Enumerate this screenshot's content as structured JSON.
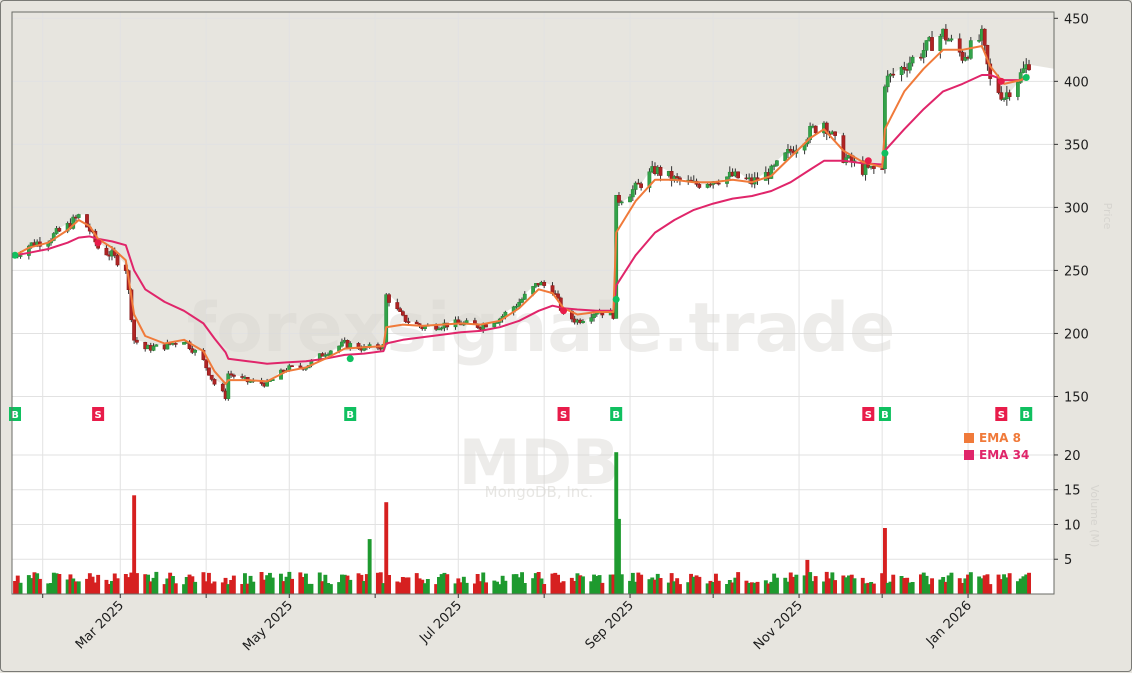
{
  "window": {
    "watermark_site": "forexsignale.trade",
    "watermark_ticker": "MDB",
    "watermark_company": "MongoDB, Inc."
  },
  "colors": {
    "background": "#e7e5df",
    "plot_bg": "#ffffff",
    "up": "#1e9a2f",
    "down": "#d62020",
    "ema8": "#f07a3a",
    "ema34": "#e0256a",
    "buy": "#10c060",
    "sell": "#e81c4a",
    "grid": "#e2e2e2"
  },
  "legend": {
    "items": [
      {
        "label": "EMA 8",
        "color": "#f07a3a"
      },
      {
        "label": "EMA 34",
        "color": "#e0256a"
      }
    ]
  },
  "axes": {
    "price_label": "Price",
    "volume_label": "Volume (M)"
  },
  "chart_data": {
    "type": "candlestick",
    "title": "MDB - MongoDB, Inc.",
    "xlabel": "",
    "ylabel": "Price",
    "price_ylim": [
      125,
      455
    ],
    "price_yticks": [
      150,
      200,
      250,
      300,
      350,
      400,
      450
    ],
    "volume_ylim": [
      0,
      21
    ],
    "volume_yticks": [
      5,
      10,
      15,
      20
    ],
    "x_tick_labels": [
      "Mar 2025",
      "May 2025",
      "Jul 2025",
      "Sep 2025",
      "Nov 2025",
      "Jan 2026"
    ],
    "x_range": [
      "2025-01-22",
      "2026-01-23"
    ],
    "grid": true,
    "legend_position": "lower right of price panel",
    "series": [
      {
        "name": "EMA 8",
        "type": "line"
      },
      {
        "name": "EMA 34",
        "type": "line"
      }
    ],
    "close_approx": [
      {
        "date": "2025-01-22",
        "close": 262
      },
      {
        "date": "2025-01-27",
        "close": 270
      },
      {
        "date": "2025-02-03",
        "close": 275
      },
      {
        "date": "2025-02-10",
        "close": 285
      },
      {
        "date": "2025-02-14",
        "close": 293
      },
      {
        "date": "2025-02-18",
        "close": 282
      },
      {
        "date": "2025-02-21",
        "close": 268
      },
      {
        "date": "2025-02-26",
        "close": 262
      },
      {
        "date": "2025-03-03",
        "close": 252
      },
      {
        "date": "2025-03-06",
        "close": 195
      },
      {
        "date": "2025-03-10",
        "close": 188
      },
      {
        "date": "2025-03-17",
        "close": 190
      },
      {
        "date": "2025-03-24",
        "close": 195
      },
      {
        "date": "2025-03-31",
        "close": 178
      },
      {
        "date": "2025-04-04",
        "close": 160
      },
      {
        "date": "2025-04-08",
        "close": 150
      },
      {
        "date": "2025-04-09",
        "close": 168
      },
      {
        "date": "2025-04-16",
        "close": 162
      },
      {
        "date": "2025-04-23",
        "close": 160
      },
      {
        "date": "2025-04-30",
        "close": 172
      },
      {
        "date": "2025-05-07",
        "close": 174
      },
      {
        "date": "2025-05-14",
        "close": 185
      },
      {
        "date": "2025-05-21",
        "close": 192
      },
      {
        "date": "2025-05-28",
        "close": 188
      },
      {
        "date": "2025-06-04",
        "close": 190
      },
      {
        "date": "2025-06-05",
        "close": 230
      },
      {
        "date": "2025-06-11",
        "close": 212
      },
      {
        "date": "2025-06-18",
        "close": 205
      },
      {
        "date": "2025-06-25",
        "close": 207
      },
      {
        "date": "2025-07-02",
        "close": 208
      },
      {
        "date": "2025-07-09",
        "close": 206
      },
      {
        "date": "2025-07-16",
        "close": 212
      },
      {
        "date": "2025-07-23",
        "close": 225
      },
      {
        "date": "2025-07-30",
        "close": 240
      },
      {
        "date": "2025-08-04",
        "close": 235
      },
      {
        "date": "2025-08-08",
        "close": 215
      },
      {
        "date": "2025-08-13",
        "close": 210
      },
      {
        "date": "2025-08-20",
        "close": 218
      },
      {
        "date": "2025-08-26",
        "close": 215
      },
      {
        "date": "2025-08-27",
        "close": 305
      },
      {
        "date": "2025-09-03",
        "close": 315
      },
      {
        "date": "2025-09-10",
        "close": 330
      },
      {
        "date": "2025-09-17",
        "close": 322
      },
      {
        "date": "2025-09-24",
        "close": 318
      },
      {
        "date": "2025-10-01",
        "close": 322
      },
      {
        "date": "2025-10-08",
        "close": 325
      },
      {
        "date": "2025-10-15",
        "close": 320
      },
      {
        "date": "2025-10-22",
        "close": 328
      },
      {
        "date": "2025-10-29",
        "close": 345
      },
      {
        "date": "2025-11-05",
        "close": 360
      },
      {
        "date": "2025-11-10",
        "close": 368
      },
      {
        "date": "2025-11-17",
        "close": 340
      },
      {
        "date": "2025-11-24",
        "close": 330
      },
      {
        "date": "2025-12-01",
        "close": 330
      },
      {
        "date": "2025-12-02",
        "close": 400
      },
      {
        "date": "2025-12-09",
        "close": 412
      },
      {
        "date": "2025-12-16",
        "close": 425
      },
      {
        "date": "2025-12-23",
        "close": 438
      },
      {
        "date": "2025-12-30",
        "close": 420
      },
      {
        "date": "2026-01-06",
        "close": 435
      },
      {
        "date": "2026-01-09",
        "close": 400
      },
      {
        "date": "2026-01-14",
        "close": 388
      },
      {
        "date": "2026-01-20",
        "close": 405
      },
      {
        "date": "2026-01-23",
        "close": 415
      }
    ],
    "ema8_approx": [
      262,
      268,
      272,
      282,
      290,
      285,
      275,
      268,
      258,
      215,
      198,
      192,
      195,
      186,
      170,
      160,
      163,
      163,
      162,
      170,
      173,
      180,
      188,
      189,
      190,
      205,
      207,
      206,
      207,
      208,
      207,
      210,
      220,
      235,
      232,
      220,
      215,
      217,
      217,
      280,
      305,
      322,
      322,
      320,
      320,
      322,
      320,
      325,
      340,
      355,
      362,
      345,
      336,
      332,
      362,
      392,
      410,
      425,
      425,
      428,
      412,
      398,
      401,
      405
    ],
    "ema34_approx": [
      262,
      264,
      267,
      272,
      276,
      277,
      275,
      273,
      270,
      250,
      235,
      225,
      218,
      208,
      196,
      185,
      180,
      178,
      176,
      177,
      178,
      180,
      183,
      184,
      186,
      192,
      195,
      197,
      199,
      201,
      202,
      205,
      210,
      218,
      222,
      220,
      219,
      218,
      218,
      238,
      262,
      280,
      290,
      298,
      303,
      307,
      309,
      313,
      320,
      330,
      337,
      337,
      335,
      334,
      345,
      362,
      378,
      392,
      398,
      405,
      405,
      401,
      401,
      403
    ],
    "volume_spikes_M": [
      {
        "date": "2025-03-06",
        "volume": 14.2,
        "dir": "down"
      },
      {
        "date": "2025-06-05",
        "volume": 13.2,
        "dir": "down"
      },
      {
        "date": "2025-05-30",
        "volume": 7.9,
        "dir": "up"
      },
      {
        "date": "2025-08-27",
        "volume": 20.4,
        "dir": "up"
      },
      {
        "date": "2025-08-28",
        "volume": 10.8,
        "dir": "up"
      },
      {
        "date": "2025-12-02",
        "volume": 9.5,
        "dir": "down"
      },
      {
        "date": "2025-11-04",
        "volume": 4.9,
        "dir": "down"
      }
    ],
    "typical_volume_M": 2.0,
    "signals": [
      {
        "type": "B",
        "date": "2025-01-22",
        "price": 262
      },
      {
        "type": "S",
        "date": "2025-02-21",
        "price": 272
      },
      {
        "type": "B",
        "date": "2025-05-23",
        "price": 180
      },
      {
        "type": "S",
        "date": "2025-08-08",
        "price": 218
      },
      {
        "type": "B",
        "date": "2025-08-27",
        "price": 227
      },
      {
        "type": "S",
        "date": "2025-11-26",
        "price": 337
      },
      {
        "type": "B",
        "date": "2025-12-02",
        "price": 343
      },
      {
        "type": "S",
        "date": "2026-01-13",
        "price": 400
      },
      {
        "type": "B",
        "date": "2026-01-22",
        "price": 403
      }
    ]
  }
}
